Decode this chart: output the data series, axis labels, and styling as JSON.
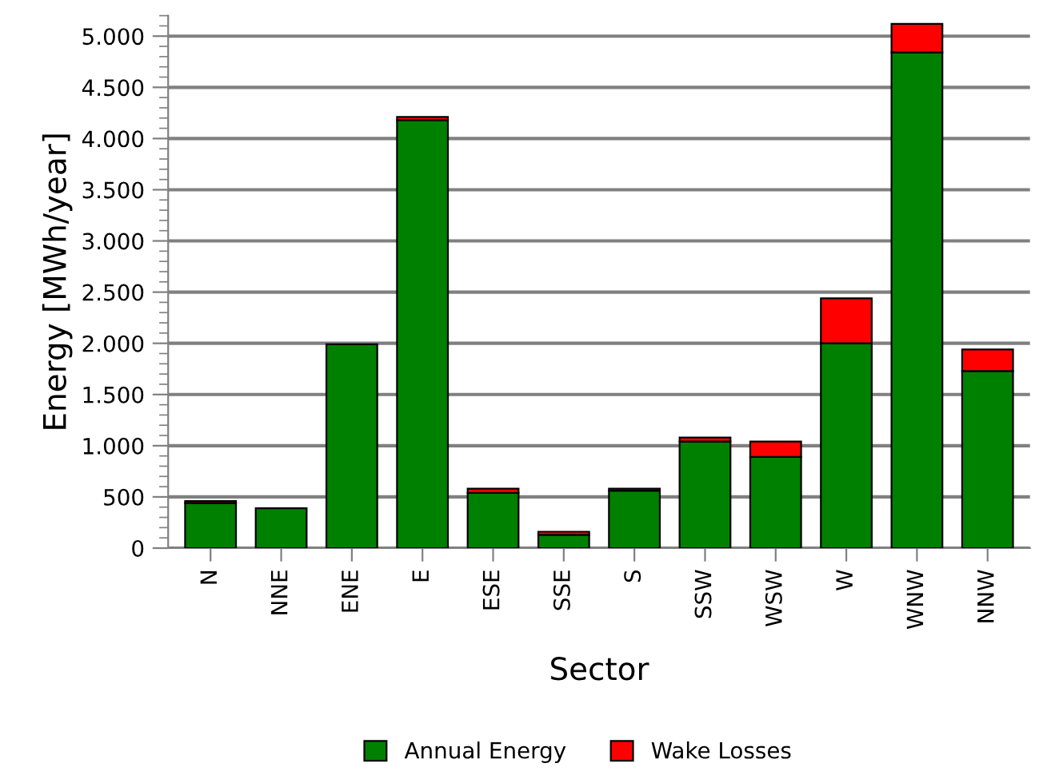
{
  "chart_data": {
    "type": "bar",
    "stacked": true,
    "xlabel": "Sector",
    "ylabel": "Energy [MWh/year]",
    "categories": [
      "N",
      "NNE",
      "ENE",
      "E",
      "ESE",
      "SSE",
      "S",
      "SSW",
      "WSW",
      "W",
      "WNW",
      "NNW"
    ],
    "series": [
      {
        "name": "Annual Energy",
        "color": "#008000",
        "values": [
          440,
          390,
          1990,
          4180,
          540,
          130,
          560,
          1040,
          890,
          2000,
          4840,
          1730
        ]
      },
      {
        "name": "Wake Losses",
        "color": "#ff0000",
        "values": [
          20,
          null,
          null,
          30,
          40,
          30,
          20,
          40,
          150,
          440,
          280,
          210
        ]
      }
    ],
    "ylim": [
      0,
      5200
    ],
    "yticks": [
      0,
      500,
      {
        "value": 1000,
        "label": "1.000"
      },
      {
        "value": 1500,
        "label": "1.500"
      },
      {
        "value": 2000,
        "label": "2.000"
      },
      {
        "value": 2500,
        "label": "2.500"
      },
      {
        "value": 3000,
        "label": "3.000"
      },
      {
        "value": 3500,
        "label": "3.500"
      },
      {
        "value": 4000,
        "label": "4.000"
      },
      {
        "value": 4500,
        "label": "4.500"
      },
      {
        "value": 5000,
        "label": "5.000"
      }
    ],
    "grid": "y",
    "legend": "bottom"
  }
}
